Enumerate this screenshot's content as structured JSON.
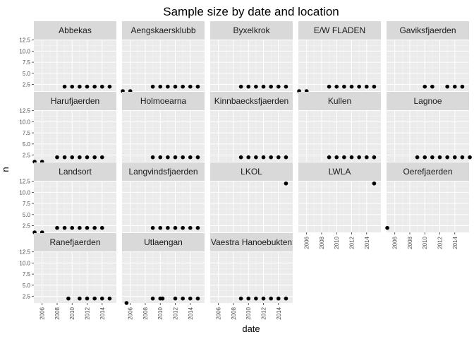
{
  "chart_data": {
    "type": "scatter",
    "layout": "facet_wrap",
    "title": "Sample size by date and location",
    "xlabel": "date",
    "ylabel": "n",
    "x_ticks": [
      "2006",
      "2008",
      "2010",
      "2012",
      "2014"
    ],
    "y_ticks": [
      "2.5",
      "5.0",
      "7.5",
      "10.0",
      "12.5"
    ],
    "xlim": [
      2004.9,
      2015.9
    ],
    "ylim": [
      1.0,
      12.6
    ],
    "grid": true,
    "panels": [
      {
        "name": "Abbekas",
        "points": [
          [
            2009,
            2
          ],
          [
            2010,
            2
          ],
          [
            2011,
            2
          ],
          [
            2012,
            2
          ],
          [
            2013,
            2
          ],
          [
            2014,
            2
          ],
          [
            2015,
            2
          ]
        ]
      },
      {
        "name": "Aengskaersklubb",
        "points": [
          [
            2005,
            1
          ],
          [
            2006,
            1
          ],
          [
            2009,
            2
          ],
          [
            2010,
            2
          ],
          [
            2011,
            2
          ],
          [
            2012,
            2
          ],
          [
            2013,
            2
          ],
          [
            2014,
            2
          ],
          [
            2015,
            2
          ]
        ]
      },
      {
        "name": "Byxelkrok",
        "points": [
          [
            2009,
            2
          ],
          [
            2010,
            2
          ],
          [
            2011,
            2
          ],
          [
            2012,
            2
          ],
          [
            2013,
            2
          ],
          [
            2014,
            2
          ],
          [
            2015,
            2
          ]
        ]
      },
      {
        "name": "E/W FLADEN",
        "points": [
          [
            2005,
            1
          ],
          [
            2006,
            1
          ],
          [
            2009,
            2
          ],
          [
            2010,
            2
          ],
          [
            2011,
            2
          ],
          [
            2012,
            2
          ],
          [
            2013,
            2
          ],
          [
            2014,
            2
          ],
          [
            2015,
            2
          ]
        ]
      },
      {
        "name": "Gaviksfjaerden",
        "points": [
          [
            2010,
            2
          ],
          [
            2011,
            2
          ],
          [
            2013,
            2
          ],
          [
            2014,
            2
          ],
          [
            2015,
            2
          ]
        ]
      },
      {
        "name": "Harufjaerden",
        "points": [
          [
            2005,
            1
          ],
          [
            2006,
            1
          ],
          [
            2008,
            2
          ],
          [
            2009,
            2
          ],
          [
            2010,
            2
          ],
          [
            2011,
            2
          ],
          [
            2012,
            2
          ],
          [
            2013,
            2
          ],
          [
            2014,
            2
          ]
        ]
      },
      {
        "name": "Holmoearna",
        "points": [
          [
            2009,
            2
          ],
          [
            2010,
            2
          ],
          [
            2011,
            2
          ],
          [
            2012,
            2
          ],
          [
            2013,
            2
          ],
          [
            2014,
            2
          ],
          [
            2015,
            2
          ]
        ]
      },
      {
        "name": "Kinnbaecksfjaerden",
        "points": [
          [
            2009,
            2
          ],
          [
            2010,
            2
          ],
          [
            2011,
            2
          ],
          [
            2012,
            2
          ],
          [
            2013,
            2
          ],
          [
            2014,
            2
          ],
          [
            2015,
            2
          ]
        ]
      },
      {
        "name": "Kullen",
        "points": [
          [
            2009,
            2
          ],
          [
            2010,
            2
          ],
          [
            2011,
            2
          ],
          [
            2012,
            2
          ],
          [
            2013,
            2
          ],
          [
            2014,
            2
          ],
          [
            2015,
            2
          ]
        ]
      },
      {
        "name": "Lagnoe",
        "points": [
          [
            2009,
            2
          ],
          [
            2010,
            2
          ],
          [
            2011,
            2
          ],
          [
            2012,
            2
          ],
          [
            2013,
            2
          ],
          [
            2014,
            2
          ],
          [
            2015,
            2
          ],
          [
            2016,
            2
          ]
        ]
      },
      {
        "name": "Landsort",
        "points": [
          [
            2005,
            1
          ],
          [
            2006,
            1
          ],
          [
            2008,
            2
          ],
          [
            2009,
            2
          ],
          [
            2010,
            2
          ],
          [
            2011,
            2
          ],
          [
            2012,
            2
          ],
          [
            2013,
            2
          ],
          [
            2014,
            2
          ]
        ]
      },
      {
        "name": "Langvindsfjaerden",
        "points": [
          [
            2009,
            2
          ],
          [
            2010,
            2
          ],
          [
            2011,
            2
          ],
          [
            2012,
            2
          ],
          [
            2013,
            2
          ],
          [
            2014,
            2
          ],
          [
            2015,
            2
          ]
        ]
      },
      {
        "name": "LKOL",
        "points": [
          [
            2015,
            12
          ]
        ]
      },
      {
        "name": "LWLA",
        "points": [
          [
            2015,
            12
          ]
        ]
      },
      {
        "name": "Oerefjaerden",
        "points": [
          [
            2005,
            2
          ]
        ]
      },
      {
        "name": "Ranefjaerden",
        "points": [
          [
            2009.5,
            2
          ],
          [
            2011,
            2
          ],
          [
            2012,
            2
          ],
          [
            2013,
            2
          ],
          [
            2014,
            2
          ],
          [
            2015,
            2
          ]
        ]
      },
      {
        "name": "Utlaengan",
        "points": [
          [
            2005.5,
            1
          ],
          [
            2009,
            2
          ],
          [
            2010,
            2
          ],
          [
            2010.3,
            2
          ],
          [
            2012,
            2
          ],
          [
            2013,
            2
          ],
          [
            2014,
            2
          ],
          [
            2015,
            2
          ]
        ]
      },
      {
        "name": "Vaestra Hanoebukten",
        "points": [
          [
            2009,
            2
          ],
          [
            2010,
            2
          ],
          [
            2011,
            2
          ],
          [
            2012,
            2
          ],
          [
            2013,
            2
          ],
          [
            2014,
            2
          ],
          [
            2015,
            2
          ]
        ]
      }
    ]
  }
}
